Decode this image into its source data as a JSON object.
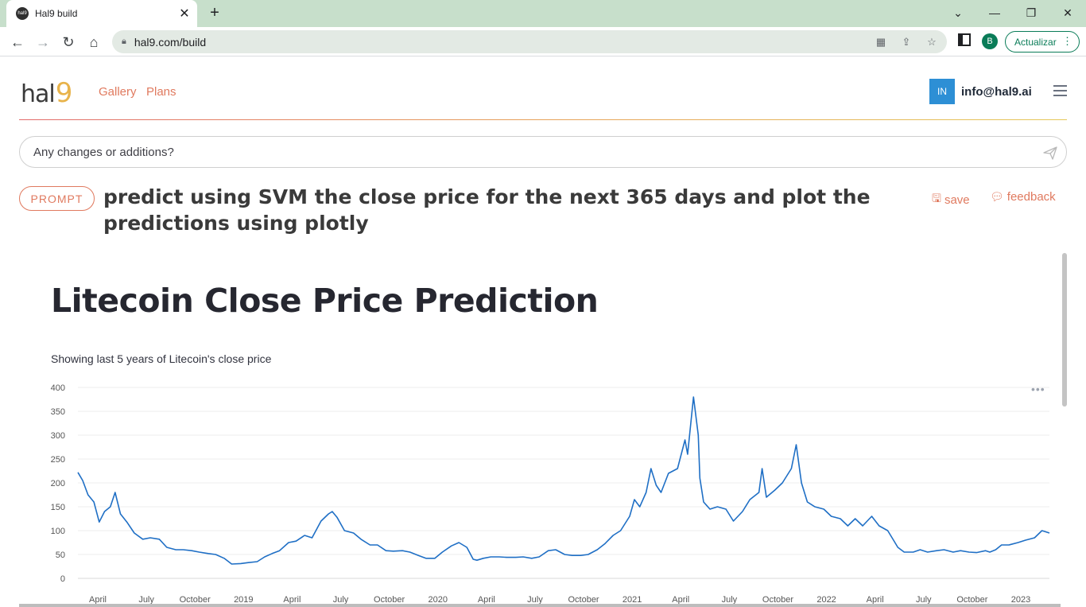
{
  "browser": {
    "tab_title": "Hal9 build",
    "tab_favicon_label": "hal9",
    "url": "hal9.com/build",
    "profile_initial": "B",
    "update_label": "Actualizar"
  },
  "header": {
    "logo_text": "hal",
    "logo_nine": "9",
    "nav": [
      "Gallery",
      "Plans"
    ],
    "user_initials": "IN",
    "user_email": "info@hal9.ai"
  },
  "prompt_input": {
    "placeholder": "Any changes or additions?"
  },
  "prompt": {
    "badge": "PROMPT",
    "text": "predict using SVM the close price for the next 365 days and plot the predictions using plotly",
    "save_label": "save",
    "feedback_label": "feedback"
  },
  "app": {
    "title": "Litecoin Close Price Prediction",
    "subtitle": "Showing last 5 years of Litecoin's close price"
  },
  "chart_data": {
    "type": "line",
    "title": "",
    "xlabel": "",
    "ylabel": "",
    "ylim": [
      0,
      400
    ],
    "yticks": [
      0,
      50,
      100,
      150,
      200,
      250,
      300,
      350,
      400
    ],
    "xticks": [
      "April",
      "July",
      "October",
      "2019",
      "April",
      "July",
      "October",
      "2020",
      "April",
      "July",
      "October",
      "2021",
      "April",
      "July",
      "October",
      "2022",
      "April",
      "July",
      "October",
      "2023"
    ],
    "x_range": [
      "2018-03-01",
      "2023-03-01"
    ],
    "grid": true,
    "line_color": "#1f6fc5",
    "series": [
      {
        "x": [
          "2018-03-01",
          "2018-03-10",
          "2018-03-20",
          "2018-03-31",
          "2018-04-10",
          "2018-04-20",
          "2018-05-01",
          "2018-05-10",
          "2018-05-20",
          "2018-06-01",
          "2018-06-15",
          "2018-07-01",
          "2018-07-15",
          "2018-08-01",
          "2018-08-15",
          "2018-09-01",
          "2018-09-15",
          "2018-10-01",
          "2018-10-15",
          "2018-11-01",
          "2018-11-15",
          "2018-12-01",
          "2018-12-15",
          "2019-01-01",
          "2019-01-15",
          "2019-02-01",
          "2019-02-15",
          "2019-03-01",
          "2019-03-15",
          "2019-04-01",
          "2019-04-15",
          "2019-05-01",
          "2019-05-15",
          "2019-06-01",
          "2019-06-15",
          "2019-06-22",
          "2019-07-01",
          "2019-07-15",
          "2019-08-01",
          "2019-08-15",
          "2019-09-01",
          "2019-09-15",
          "2019-10-01",
          "2019-10-15",
          "2019-11-01",
          "2019-11-15",
          "2019-12-01",
          "2019-12-15",
          "2020-01-01",
          "2020-01-15",
          "2020-02-01",
          "2020-02-15",
          "2020-03-01",
          "2020-03-13",
          "2020-03-20",
          "2020-04-01",
          "2020-04-15",
          "2020-05-01",
          "2020-05-15",
          "2020-06-01",
          "2020-06-15",
          "2020-07-01",
          "2020-07-15",
          "2020-08-01",
          "2020-08-15",
          "2020-09-01",
          "2020-09-15",
          "2020-10-01",
          "2020-10-15",
          "2020-11-01",
          "2020-11-15",
          "2020-12-01",
          "2020-12-15",
          "2021-01-01",
          "2021-01-10",
          "2021-01-20",
          "2021-02-01",
          "2021-02-10",
          "2021-02-20",
          "2021-03-01",
          "2021-03-15",
          "2021-04-01",
          "2021-04-15",
          "2021-04-20",
          "2021-05-01",
          "2021-05-10",
          "2021-05-13",
          "2021-05-20",
          "2021-06-01",
          "2021-06-15",
          "2021-07-01",
          "2021-07-15",
          "2021-08-01",
          "2021-08-15",
          "2021-09-01",
          "2021-09-07",
          "2021-09-15",
          "2021-10-01",
          "2021-10-15",
          "2021-11-01",
          "2021-11-10",
          "2021-11-20",
          "2021-12-01",
          "2021-12-15",
          "2022-01-01",
          "2022-01-15",
          "2022-02-01",
          "2022-02-15",
          "2022-03-01",
          "2022-03-15",
          "2022-04-01",
          "2022-04-15",
          "2022-05-01",
          "2022-05-12",
          "2022-05-20",
          "2022-06-01",
          "2022-06-18",
          "2022-07-01",
          "2022-07-15",
          "2022-08-01",
          "2022-08-15",
          "2022-09-01",
          "2022-09-15",
          "2022-10-01",
          "2022-10-15",
          "2022-11-01",
          "2022-11-09",
          "2022-11-20",
          "2022-12-01",
          "2022-12-15",
          "2023-01-01",
          "2023-01-15",
          "2023-02-01",
          "2023-02-15",
          "2023-03-01"
        ],
        "y": [
          222,
          205,
          175,
          160,
          118,
          140,
          150,
          180,
          135,
          118,
          95,
          82,
          85,
          82,
          65,
          60,
          60,
          58,
          55,
          52,
          50,
          42,
          30,
          31,
          33,
          35,
          45,
          52,
          58,
          75,
          78,
          90,
          85,
          120,
          135,
          140,
          128,
          100,
          95,
          82,
          70,
          70,
          58,
          57,
          58,
          55,
          48,
          42,
          42,
          55,
          68,
          75,
          65,
          40,
          38,
          42,
          45,
          45,
          44,
          44,
          45,
          42,
          45,
          58,
          60,
          50,
          48,
          48,
          50,
          60,
          72,
          90,
          100,
          130,
          165,
          150,
          180,
          230,
          195,
          180,
          220,
          230,
          290,
          260,
          380,
          300,
          210,
          160,
          145,
          150,
          145,
          120,
          140,
          165,
          180,
          230,
          170,
          185,
          200,
          230,
          280,
          200,
          160,
          150,
          145,
          130,
          125,
          110,
          125,
          110,
          130,
          110,
          100,
          80,
          65,
          55,
          55,
          60,
          55,
          58,
          60,
          55,
          58,
          55,
          54,
          58,
          55,
          60,
          70,
          70,
          75,
          80,
          85,
          100,
          95
        ]
      }
    ]
  }
}
